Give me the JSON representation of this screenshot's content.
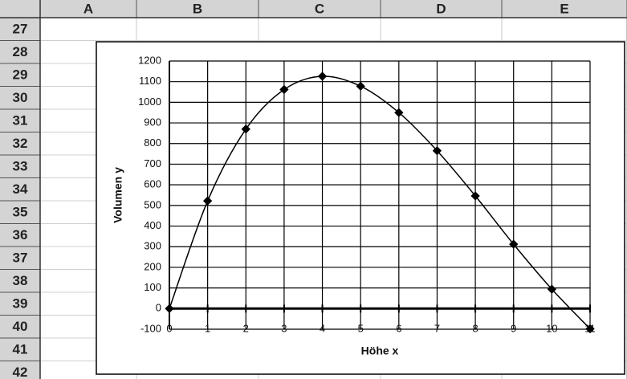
{
  "sheet": {
    "columns": [
      "A",
      "B",
      "C",
      "D",
      "E"
    ],
    "rows": [
      27,
      28,
      29,
      30,
      31,
      32,
      33,
      34,
      35,
      36,
      37,
      38,
      39,
      40,
      41,
      42
    ]
  },
  "chart_data": {
    "type": "line",
    "x_label": "Höhe x",
    "y_label": "Volumen y",
    "x": [
      0,
      1,
      2,
      3,
      4,
      5,
      6,
      7,
      8,
      9,
      10,
      11
    ],
    "series": [
      {
        "color": "#000000",
        "values": [
          0,
          522,
          870,
          1062,
          1126,
          1078,
          950,
          765,
          546,
          312,
          94,
          -98
        ]
      }
    ],
    "xlim": [
      0,
      11
    ],
    "xticks": [
      0,
      1,
      2,
      3,
      4,
      5,
      6,
      7,
      8,
      9,
      10,
      11
    ],
    "ylim": [
      -100,
      1200
    ],
    "yticks": [
      -100,
      0,
      100,
      200,
      300,
      400,
      500,
      600,
      700,
      800,
      900,
      1000,
      1100,
      1200
    ],
    "grid": true
  }
}
